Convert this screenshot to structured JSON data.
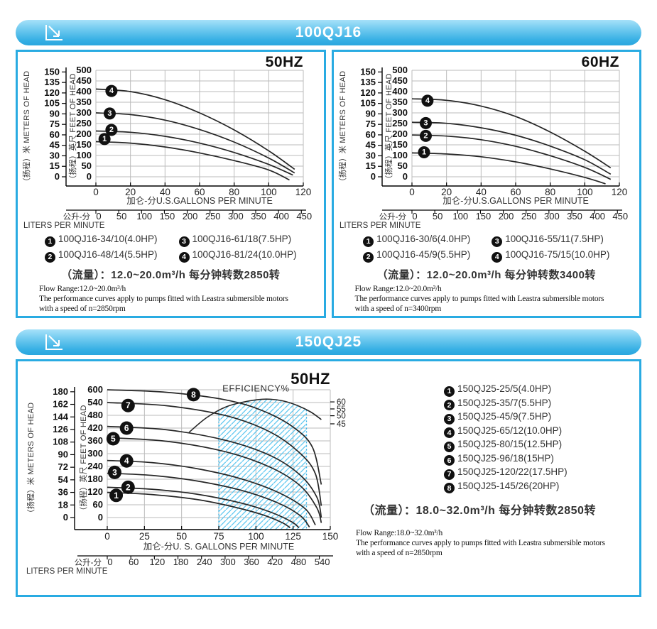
{
  "header1": {
    "title": "100QJ16"
  },
  "header2": {
    "title": "150QJ25"
  },
  "chart_data": [
    {
      "type": "line",
      "title": "50HZ",
      "x_max": 120,
      "feet_max": 500,
      "y_left_axis": "（扬程）米 METERS OF HEAD",
      "y_right_axis": "（扬程）英尺 FEET OF HEAD",
      "x_axis_title": "加仑-分U.S.GALLONS PER MINUTE",
      "liters_prefix": "公升-分",
      "liters_axis": "LITERS PER MINUTE",
      "meters_ticks": [
        0,
        15,
        30,
        45,
        60,
        75,
        90,
        105,
        120,
        135,
        150
      ],
      "feet_ticks": [
        0,
        50,
        100,
        150,
        200,
        250,
        300,
        350,
        400,
        450,
        500
      ],
      "gallons_ticks": [
        0,
        20,
        40,
        60,
        80,
        100,
        120
      ],
      "liters_ticks": [
        0,
        50,
        100,
        150,
        200,
        250,
        300,
        350,
        400,
        450
      ],
      "series": [
        {
          "n": "1",
          "label": "100QJ16-34/10(4.0HP)",
          "points": [
            [
              0,
              165
            ],
            [
              20,
              158
            ],
            [
              40,
              140
            ],
            [
              60,
              112
            ],
            [
              80,
              76
            ],
            [
              100,
              32
            ],
            [
              112,
              -15
            ]
          ],
          "badge": [
            5,
            177
          ]
        },
        {
          "n": "2",
          "label": "100QJ16-48/14(5.5HP)",
          "points": [
            [
              0,
              215
            ],
            [
              20,
              209
            ],
            [
              40,
              190
            ],
            [
              60,
              158
            ],
            [
              80,
              114
            ],
            [
              100,
              58
            ],
            [
              114,
              8
            ]
          ],
          "badge": [
            9,
            220
          ]
        },
        {
          "n": "3",
          "label": "100QJ16-61/18(7.5HP)",
          "points": [
            [
              0,
              300
            ],
            [
              20,
              292
            ],
            [
              40,
              266
            ],
            [
              60,
              222
            ],
            [
              80,
              163
            ],
            [
              100,
              88
            ],
            [
              115,
              18
            ]
          ],
          "badge": [
            8,
            297
          ]
        },
        {
          "n": "4",
          "label": "100QJ16-81/24(10.0HP)",
          "points": [
            [
              0,
              412
            ],
            [
              20,
              400
            ],
            [
              40,
              362
            ],
            [
              60,
              300
            ],
            [
              80,
              220
            ],
            [
              100,
              122
            ],
            [
              115,
              35
            ]
          ],
          "badge": [
            9,
            403
          ]
        }
      ]
    },
    {
      "type": "line",
      "title": "60HZ",
      "x_max": 120,
      "feet_max": 500,
      "y_left_axis": "（扬程）米 METERS OF HEAD",
      "y_right_axis": "（扬程）英尺 FEET OF HEAD",
      "x_axis_title": "加仑-分U.S.GALLONS PER MINUTE",
      "liters_prefix": "公升-分",
      "liters_axis": "LITERS PER MINUTE",
      "meters_ticks": [
        0,
        15,
        30,
        45,
        60,
        75,
        90,
        105,
        120,
        135,
        150
      ],
      "feet_ticks": [
        0,
        50,
        100,
        150,
        200,
        250,
        300,
        350,
        400,
        450,
        500
      ],
      "gallons_ticks": [
        0,
        20,
        40,
        60,
        80,
        100,
        120
      ],
      "liters_ticks": [
        0,
        50,
        100,
        150,
        200,
        250,
        300,
        350,
        400,
        450
      ],
      "series": [
        {
          "n": "1",
          "label": "100QJ16-30/6(4.0HP)",
          "points": [
            [
              0,
              112
            ],
            [
              20,
              107
            ],
            [
              40,
              94
            ],
            [
              60,
              70
            ],
            [
              80,
              37
            ],
            [
              100,
              -3
            ],
            [
              112,
              -33
            ]
          ],
          "badge": [
            7,
            115
          ]
        },
        {
          "n": "2",
          "label": "100QJ16-45/9(5.5HP)",
          "points": [
            [
              0,
              196
            ],
            [
              20,
              191
            ],
            [
              40,
              174
            ],
            [
              60,
              143
            ],
            [
              80,
              99
            ],
            [
              100,
              44
            ],
            [
              115,
              -12
            ]
          ],
          "badge": [
            8,
            192
          ]
        },
        {
          "n": "3",
          "label": "100QJ16-55/11(7.5HP)",
          "points": [
            [
              0,
              256
            ],
            [
              20,
              251
            ],
            [
              40,
              230
            ],
            [
              60,
              195
            ],
            [
              80,
              144
            ],
            [
              100,
              80
            ],
            [
              115,
              12
            ]
          ],
          "badge": [
            8,
            252
          ]
        },
        {
          "n": "4",
          "label": "100QJ16-75/15(10.0HP)",
          "points": [
            [
              0,
              366
            ],
            [
              20,
              359
            ],
            [
              40,
              332
            ],
            [
              60,
              283
            ],
            [
              80,
              210
            ],
            [
              100,
              120
            ],
            [
              115,
              42
            ]
          ],
          "badge": [
            9,
            357
          ]
        }
      ]
    },
    {
      "type": "line",
      "title": "50HZ",
      "x_max": 150,
      "feet_max": 600,
      "y_left_axis": "（扬程）米 METERS OF HEAD",
      "y_right_axis": "（扬程）英尺 FEET OF HEAD",
      "x_axis_title": "加仑-分U. S. GALLONS PER MINUTE",
      "liters_prefix": "公升-分",
      "liters_axis": "LITERS PER MINUTE",
      "meters_ticks": [
        0,
        18,
        36,
        54,
        72,
        90,
        108,
        126,
        144,
        162,
        180
      ],
      "feet_ticks": [
        0,
        60,
        120,
        180,
        240,
        300,
        360,
        420,
        480,
        540,
        600
      ],
      "gallons_ticks": [
        0,
        25,
        50,
        75,
        100,
        125,
        150
      ],
      "liters_ticks": [
        0,
        60,
        120,
        180,
        240,
        300,
        360,
        420,
        480,
        540
      ],
      "series": [
        {
          "n": "1",
          "label": "150QJ25-25/5(4.0HP)",
          "points": [
            [
              0,
              118
            ],
            [
              30,
              108
            ],
            [
              60,
              85
            ],
            [
              85,
              50
            ],
            [
              105,
              12
            ],
            [
              118,
              -25
            ],
            [
              123,
              -48
            ]
          ],
          "badge": [
            6,
            104
          ]
        },
        {
          "n": "2",
          "label": "150QJ25-35/7(5.5HP)",
          "points": [
            [
              0,
              142
            ],
            [
              30,
              133
            ],
            [
              60,
              110
            ],
            [
              90,
              68
            ],
            [
              110,
              25
            ],
            [
              124,
              -20
            ],
            [
              129,
              -48
            ]
          ],
          "badge": [
            14,
            142
          ]
        },
        {
          "n": "3",
          "label": "150QJ25-45/9(7.5HP)",
          "points": [
            [
              0,
              208
            ],
            [
              30,
              198
            ],
            [
              60,
              172
            ],
            [
              90,
              128
            ],
            [
              115,
              68
            ],
            [
              130,
              8
            ],
            [
              136,
              -45
            ]
          ],
          "badge": [
            5,
            212
          ]
        },
        {
          "n": "4",
          "label": "150QJ25-65/12(10.0HP)",
          "points": [
            [
              0,
              268
            ],
            [
              30,
              258
            ],
            [
              60,
              230
            ],
            [
              90,
              182
            ],
            [
              115,
              118
            ],
            [
              133,
              42
            ],
            [
              140,
              -35
            ]
          ],
          "badge": [
            13,
            266
          ]
        },
        {
          "n": "5",
          "label": "150QJ25-80/15(12.5HP)",
          "points": [
            [
              0,
              375
            ],
            [
              40,
              358
            ],
            [
              80,
              308
            ],
            [
              110,
              235
            ],
            [
              130,
              148
            ],
            [
              141,
              45
            ],
            [
              144,
              -25
            ]
          ],
          "badge": [
            4,
            370
          ]
        },
        {
          "n": "6",
          "label": "150QJ25-96/18(15HP)",
          "points": [
            [
              0,
              428
            ],
            [
              40,
              412
            ],
            [
              80,
              362
            ],
            [
              110,
              290
            ],
            [
              130,
              198
            ],
            [
              141,
              95
            ],
            [
              144,
              0
            ]
          ],
          "badge": [
            13,
            420
          ]
        },
        {
          "n": "7",
          "label": "150QJ25-120/22(17.5HP)",
          "points": [
            [
              0,
              540
            ],
            [
              40,
              525
            ],
            [
              80,
              478
            ],
            [
              110,
              400
            ],
            [
              130,
              300
            ],
            [
              140,
              205
            ],
            [
              144,
              55
            ]
          ],
          "badge": [
            14,
            526
          ]
        },
        {
          "n": "8",
          "label": "150QJ25-145/26(20HP)",
          "points": [
            [
              0,
              600
            ],
            [
              40,
              588
            ],
            [
              80,
              552
            ],
            [
              105,
              500
            ],
            [
              125,
              425
            ],
            [
              138,
              330
            ],
            [
              144,
              155
            ]
          ],
          "badge": [
            58,
            577
          ]
        }
      ],
      "efficiency": {
        "label": "EFFICIENCY%",
        "points": [
          [
            55,
            400
          ],
          [
            67,
            470
          ],
          [
            80,
            520
          ],
          [
            95,
            547
          ],
          [
            107,
            556
          ],
          [
            118,
            548
          ],
          [
            128,
            526
          ],
          [
            137,
            495
          ],
          [
            144,
            460
          ]
        ],
        "right_ticks": [
          [
            "60",
            543
          ],
          [
            "55",
            510
          ],
          [
            "50",
            478
          ],
          [
            "45",
            440
          ]
        ],
        "band": [
          75,
          134
        ]
      }
    }
  ],
  "panel_50hz": {
    "flow_cn": "（流量）：12.0~20.0m³/h 每分钟转数2850转",
    "flow_en": [
      "Flow Range:12.0~20.0m³/h",
      "The performance curves apply to pumps fitted with Leastra submersible motors",
      "with a speed of n=2850rpm"
    ]
  },
  "panel_60hz": {
    "flow_cn": "（流量）：12.0~20.0m³/h 每分钟转数3400转",
    "flow_en": [
      "Flow Range:12.0~20.0m³/h",
      "The performance curves apply to pumps fitted with Leastra submersible motors",
      "with a speed of n=3400rpm"
    ]
  },
  "panel_150": {
    "flow_cn": "（流量）：18.0~32.0m³/h 每分钟转数2850转",
    "flow_en": [
      "Flow Range:18.0~32.0m³/h",
      "The performance curves apply to pumps fitted with Leastra submersible motors",
      "with a speed of n=2850rpm"
    ]
  },
  "colors": {
    "accent_blue": "#29abe2",
    "hatch_blue": "#5ec7f0",
    "curve": "#262626",
    "grid": "#bbbbbb"
  }
}
